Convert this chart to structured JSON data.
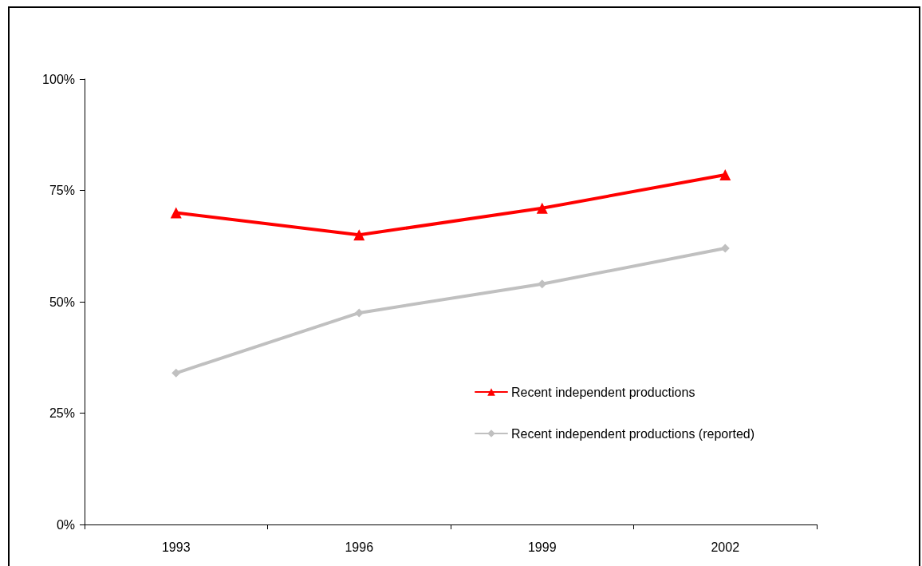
{
  "chart_data": {
    "type": "line",
    "categories": [
      "1993",
      "1996",
      "1999",
      "2002"
    ],
    "series": [
      {
        "name": "Recent independent productions",
        "color": "#ff0000",
        "marker": "triangle",
        "values": [
          70,
          65,
          71,
          78.5
        ]
      },
      {
        "name": "Recent independent productions (reported)",
        "color": "#c0c0c0",
        "marker": "diamond",
        "values": [
          34,
          47.5,
          54,
          62
        ]
      }
    ],
    "ylim": [
      0,
      100
    ],
    "yticks": [
      {
        "value": 0,
        "label": "0%"
      },
      {
        "value": 25,
        "label": "25%"
      },
      {
        "value": 50,
        "label": "50%"
      },
      {
        "value": 75,
        "label": "75%"
      },
      {
        "value": 100,
        "label": "100%"
      }
    ],
    "grid": false,
    "legend": "right",
    "line_style": "solid"
  }
}
